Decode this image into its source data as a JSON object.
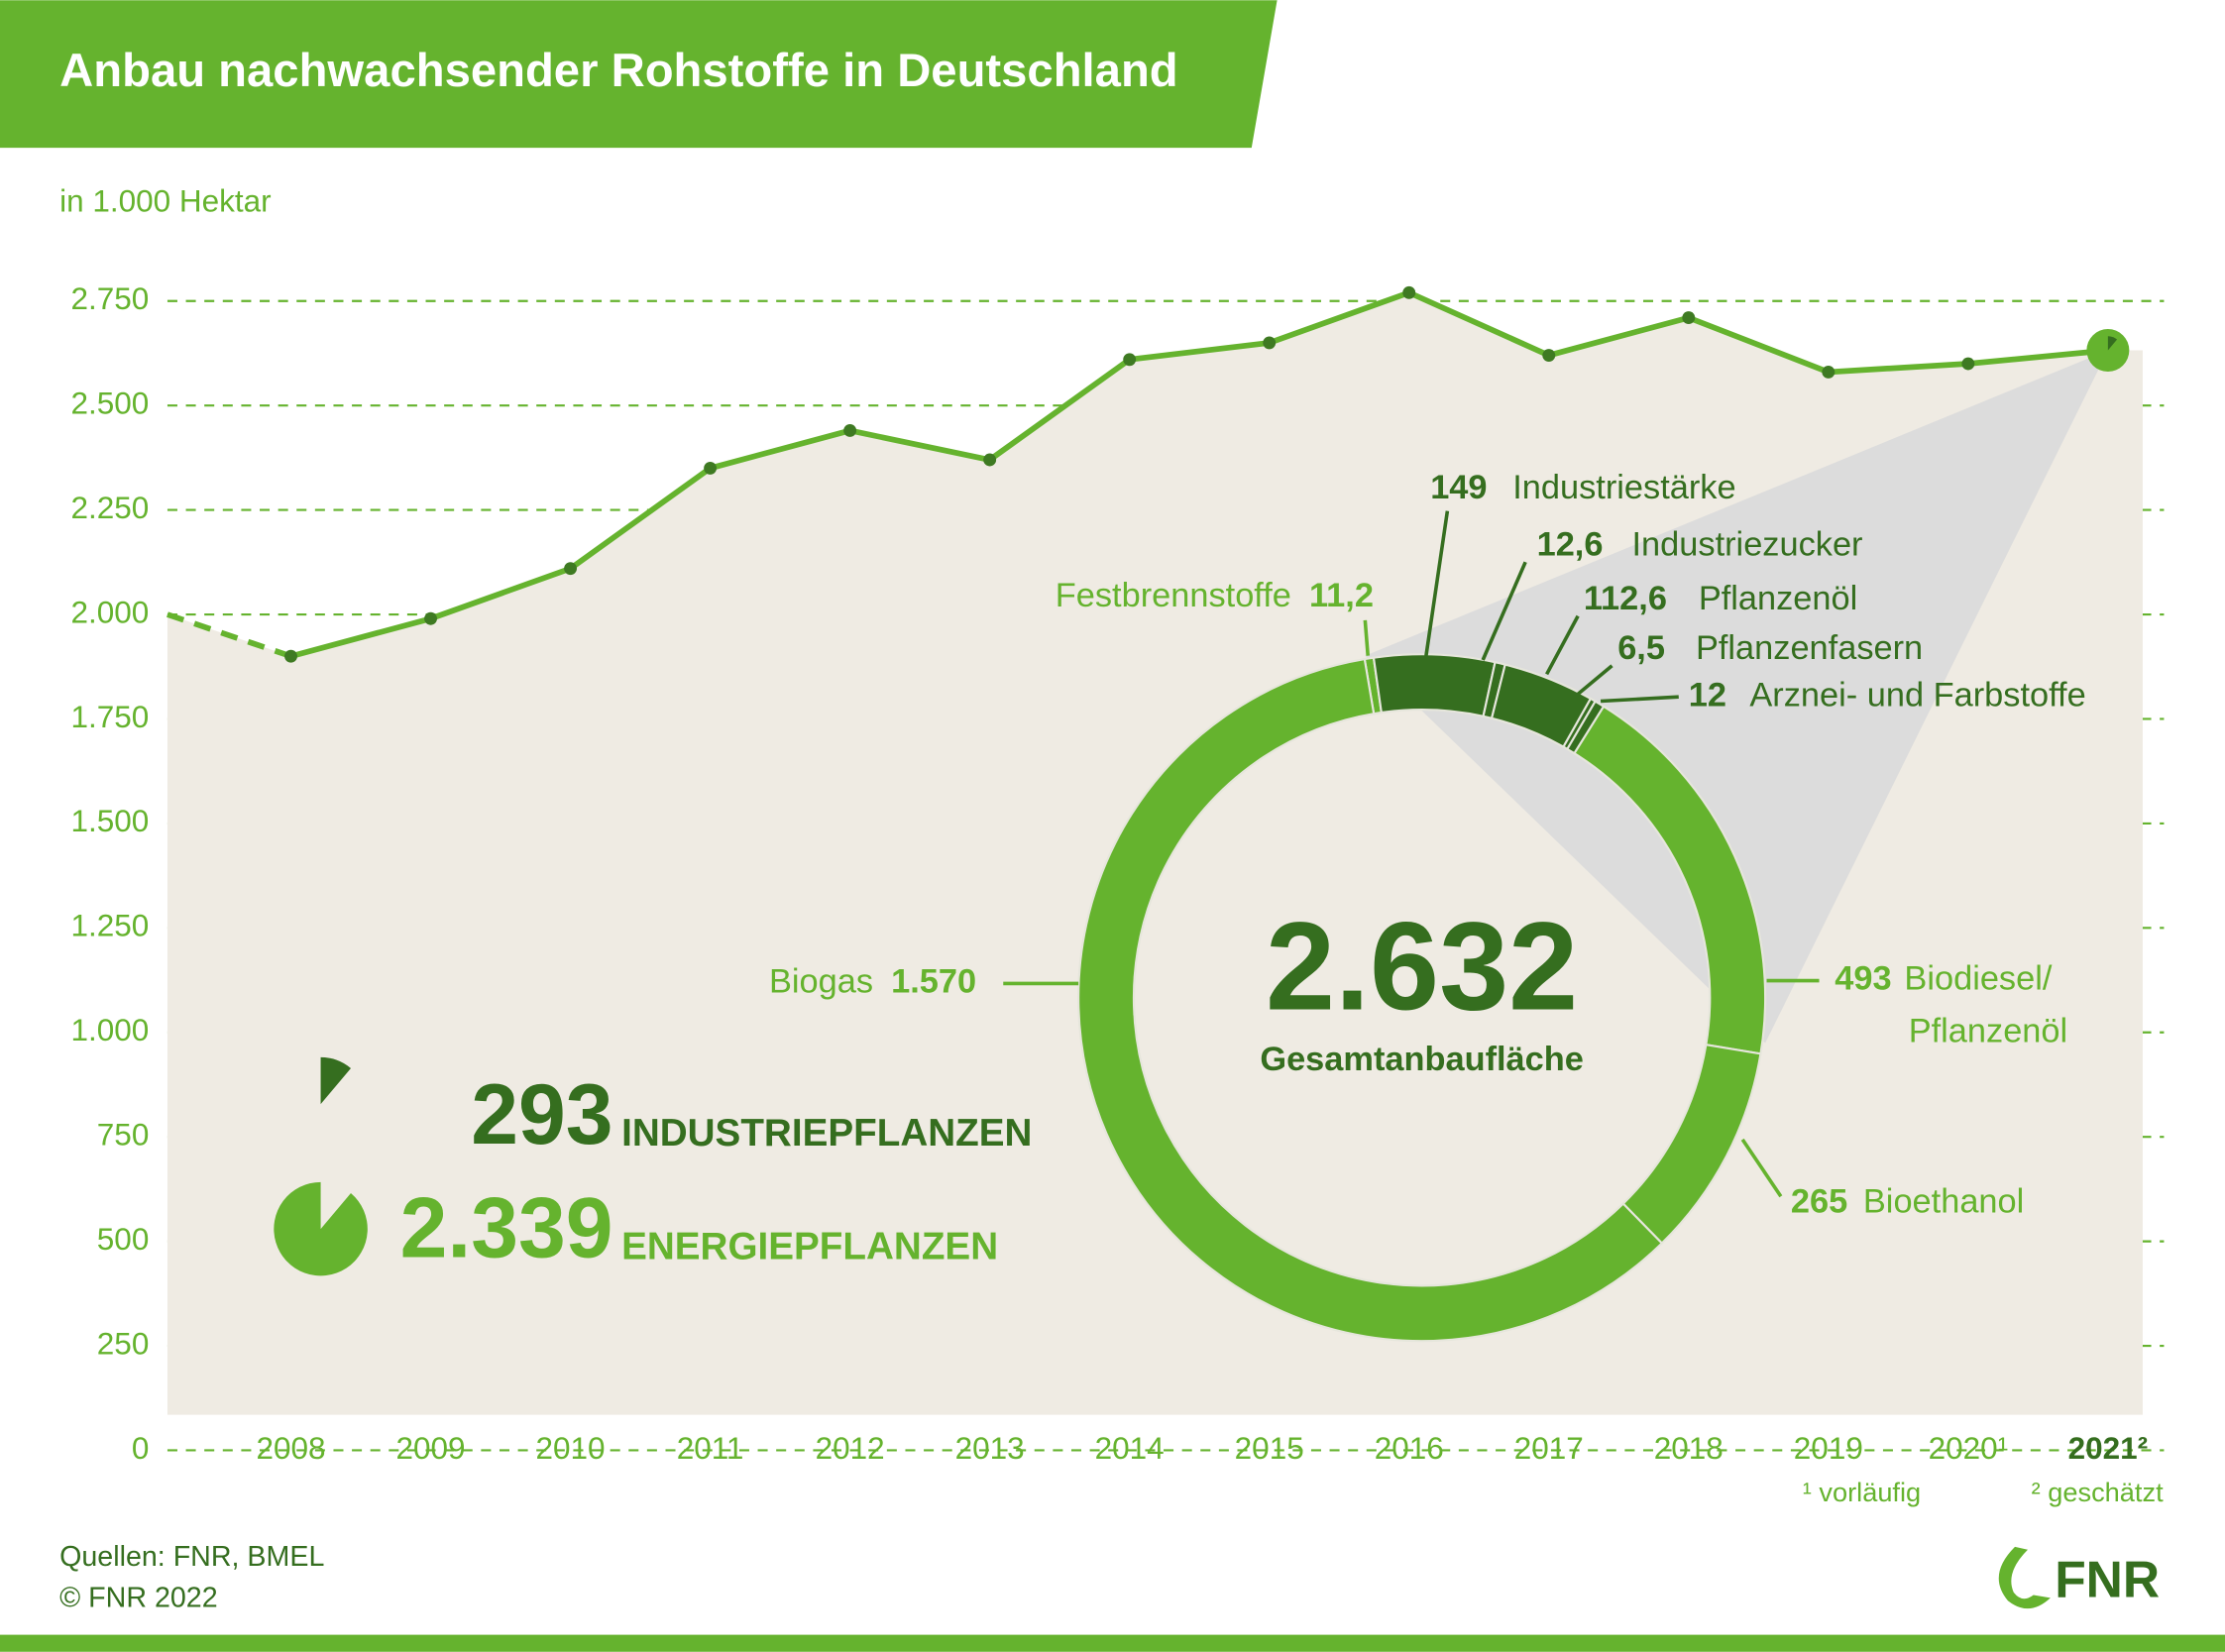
{
  "header": {
    "title": "Anbau nachwachsender Rohstoffe in Deutschland"
  },
  "chart_data": [
    {
      "type": "line",
      "subtitle": "in 1.000 Hektar",
      "categories": [
        null,
        "2008",
        "2009",
        "2010",
        "2011",
        "2012",
        "2013",
        "2014",
        "2015",
        "2016",
        "2017",
        "2018",
        "2019",
        "2020¹",
        "2021²"
      ],
      "values": [
        2000,
        1900,
        1990,
        2110,
        2350,
        2440,
        2370,
        2610,
        2650,
        2770,
        2620,
        2710,
        2580,
        2600,
        2632
      ],
      "ylim": [
        0,
        2750
      ],
      "yticks": [
        0,
        250,
        500,
        750,
        {
          "value": 1000,
          "label": "1.000"
        },
        {
          "value": 1250,
          "label": "1.250"
        },
        {
          "value": 1500,
          "label": "1.500"
        },
        {
          "value": 1750,
          "label": "1.750"
        },
        {
          "value": 2000,
          "label": "2.000"
        },
        {
          "value": 2250,
          "label": "2.250"
        },
        {
          "value": 2500,
          "label": "2.500"
        },
        {
          "value": 2750,
          "label": "2.750"
        }
      ],
      "grid": true,
      "color": "#65b32e",
      "area_color": "#efebe3",
      "first_segment_dashed": true,
      "bold_last_category": true,
      "footnotes": [
        "¹ vorläufig",
        "² geschätzt"
      ]
    },
    {
      "type": "donut",
      "center": {
        "value": 2632,
        "label": "2.632",
        "caption": "Gesamtanbaufläche"
      },
      "series": [
        {
          "name": "Festbrennstoffe",
          "color": "#65b32e",
          "values": [
            11.2
          ],
          "value_labels": [
            "11,2"
          ]
        },
        {
          "name": "Industriestärke",
          "color": "#356e1f",
          "values": [
            149
          ],
          "value_labels": [
            "149"
          ]
        },
        {
          "name": "Industriezucker",
          "color": "#356e1f",
          "values": [
            12.6
          ],
          "value_labels": [
            "12,6"
          ]
        },
        {
          "name": "Pflanzenöl",
          "color": "#356e1f",
          "values": [
            112.6
          ],
          "value_labels": [
            "112,6"
          ]
        },
        {
          "name": "Pflanzenfasern",
          "color": "#356e1f",
          "values": [
            6.5
          ],
          "value_labels": [
            "6,5"
          ]
        },
        {
          "name": "Arznei- und Farbstoffe",
          "color": "#356e1f",
          "values": [
            12
          ],
          "value_labels": [
            "12"
          ]
        },
        {
          "name": "Biodiesel/Pflanzenöl",
          "color": "#65b32e",
          "values": [
            493
          ],
          "value_labels": [
            "493"
          ]
        },
        {
          "name": "Bioethanol",
          "color": "#65b32e",
          "values": [
            265
          ],
          "value_labels": [
            "265"
          ]
        },
        {
          "name": "Biogas",
          "color": "#65b32e",
          "values": [
            1570
          ],
          "value_labels": [
            "1.570"
          ]
        }
      ],
      "groups": [
        {
          "name": "INDUSTRIEPFLANZEN",
          "value": 293,
          "value_label": "293",
          "color": "#356e1f"
        },
        {
          "name": "ENERGIEPFLANZEN",
          "value": 2339,
          "value_label": "2.339",
          "color": "#65b32e"
        }
      ]
    }
  ],
  "footer": {
    "sources": "Quellen: FNR, BMEL",
    "copyright": "© FNR 2022",
    "logo": "FNR"
  }
}
